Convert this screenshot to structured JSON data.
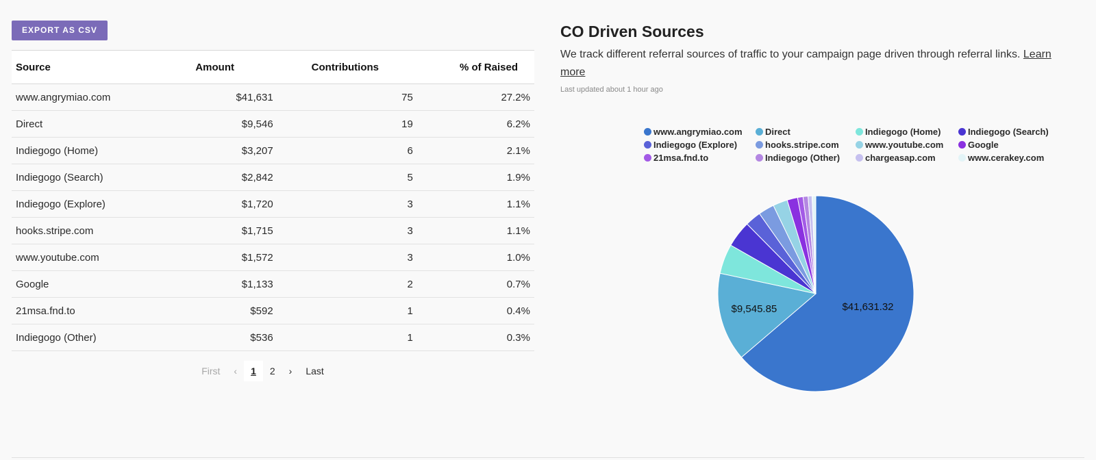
{
  "toolbar": {
    "export_label": "EXPORT AS CSV"
  },
  "table": {
    "headers": {
      "source": "Source",
      "amount": "Amount",
      "contributions": "Contributions",
      "pct": "% of Raised"
    },
    "rows": [
      {
        "source": "www.angrymiao.com",
        "amount": "$41,631",
        "contributions": "75",
        "pct": "27.2%"
      },
      {
        "source": "Direct",
        "amount": "$9,546",
        "contributions": "19",
        "pct": "6.2%"
      },
      {
        "source": "Indiegogo (Home)",
        "amount": "$3,207",
        "contributions": "6",
        "pct": "2.1%"
      },
      {
        "source": "Indiegogo (Search)",
        "amount": "$2,842",
        "contributions": "5",
        "pct": "1.9%"
      },
      {
        "source": "Indiegogo (Explore)",
        "amount": "$1,720",
        "contributions": "3",
        "pct": "1.1%"
      },
      {
        "source": "hooks.stripe.com",
        "amount": "$1,715",
        "contributions": "3",
        "pct": "1.1%"
      },
      {
        "source": "www.youtube.com",
        "amount": "$1,572",
        "contributions": "3",
        "pct": "1.0%"
      },
      {
        "source": "Google",
        "amount": "$1,133",
        "contributions": "2",
        "pct": "0.7%"
      },
      {
        "source": "21msa.fnd.to",
        "amount": "$592",
        "contributions": "1",
        "pct": "0.4%"
      },
      {
        "source": "Indiegogo (Other)",
        "amount": "$536",
        "contributions": "1",
        "pct": "0.3%"
      }
    ]
  },
  "pagination": {
    "first": "First",
    "prev": "‹",
    "pages": [
      "1",
      "2"
    ],
    "current": "1",
    "next": "›",
    "last": "Last"
  },
  "panel": {
    "title": "CO Driven Sources",
    "description": "We track different referral sources of traffic to your campaign page driven through referral links.",
    "learn_more": "Learn more",
    "updated": "Last updated about 1 hour ago"
  },
  "chart_data": {
    "type": "pie",
    "slices": [
      {
        "label": "www.angrymiao.com",
        "value": 41631.32,
        "color": "#3a76cd",
        "data_label": "$41,631.32"
      },
      {
        "label": "Direct",
        "value": 9545.85,
        "color": "#5aafd6",
        "data_label": "$9,545.85"
      },
      {
        "label": "Indiegogo (Home)",
        "value": 3207,
        "color": "#7ee6dc"
      },
      {
        "label": "Indiegogo (Search)",
        "value": 2842,
        "color": "#4a35d2"
      },
      {
        "label": "Indiegogo (Explore)",
        "value": 1720,
        "color": "#5a62d8"
      },
      {
        "label": "hooks.stripe.com",
        "value": 1715,
        "color": "#7b9be0"
      },
      {
        "label": "www.youtube.com",
        "value": 1572,
        "color": "#96d3e5"
      },
      {
        "label": "Google",
        "value": 1133,
        "color": "#8a31e0"
      },
      {
        "label": "21msa.fnd.to",
        "value": 592,
        "color": "#a35ae6"
      },
      {
        "label": "Indiegogo (Other)",
        "value": 536,
        "color": "#b487e2"
      },
      {
        "label": "chargeasap.com",
        "value": 430,
        "color": "#c6c0ef"
      },
      {
        "label": "www.cerakey.com",
        "value": 400,
        "color": "#e3f4f7"
      }
    ],
    "legend_placement": "top"
  }
}
